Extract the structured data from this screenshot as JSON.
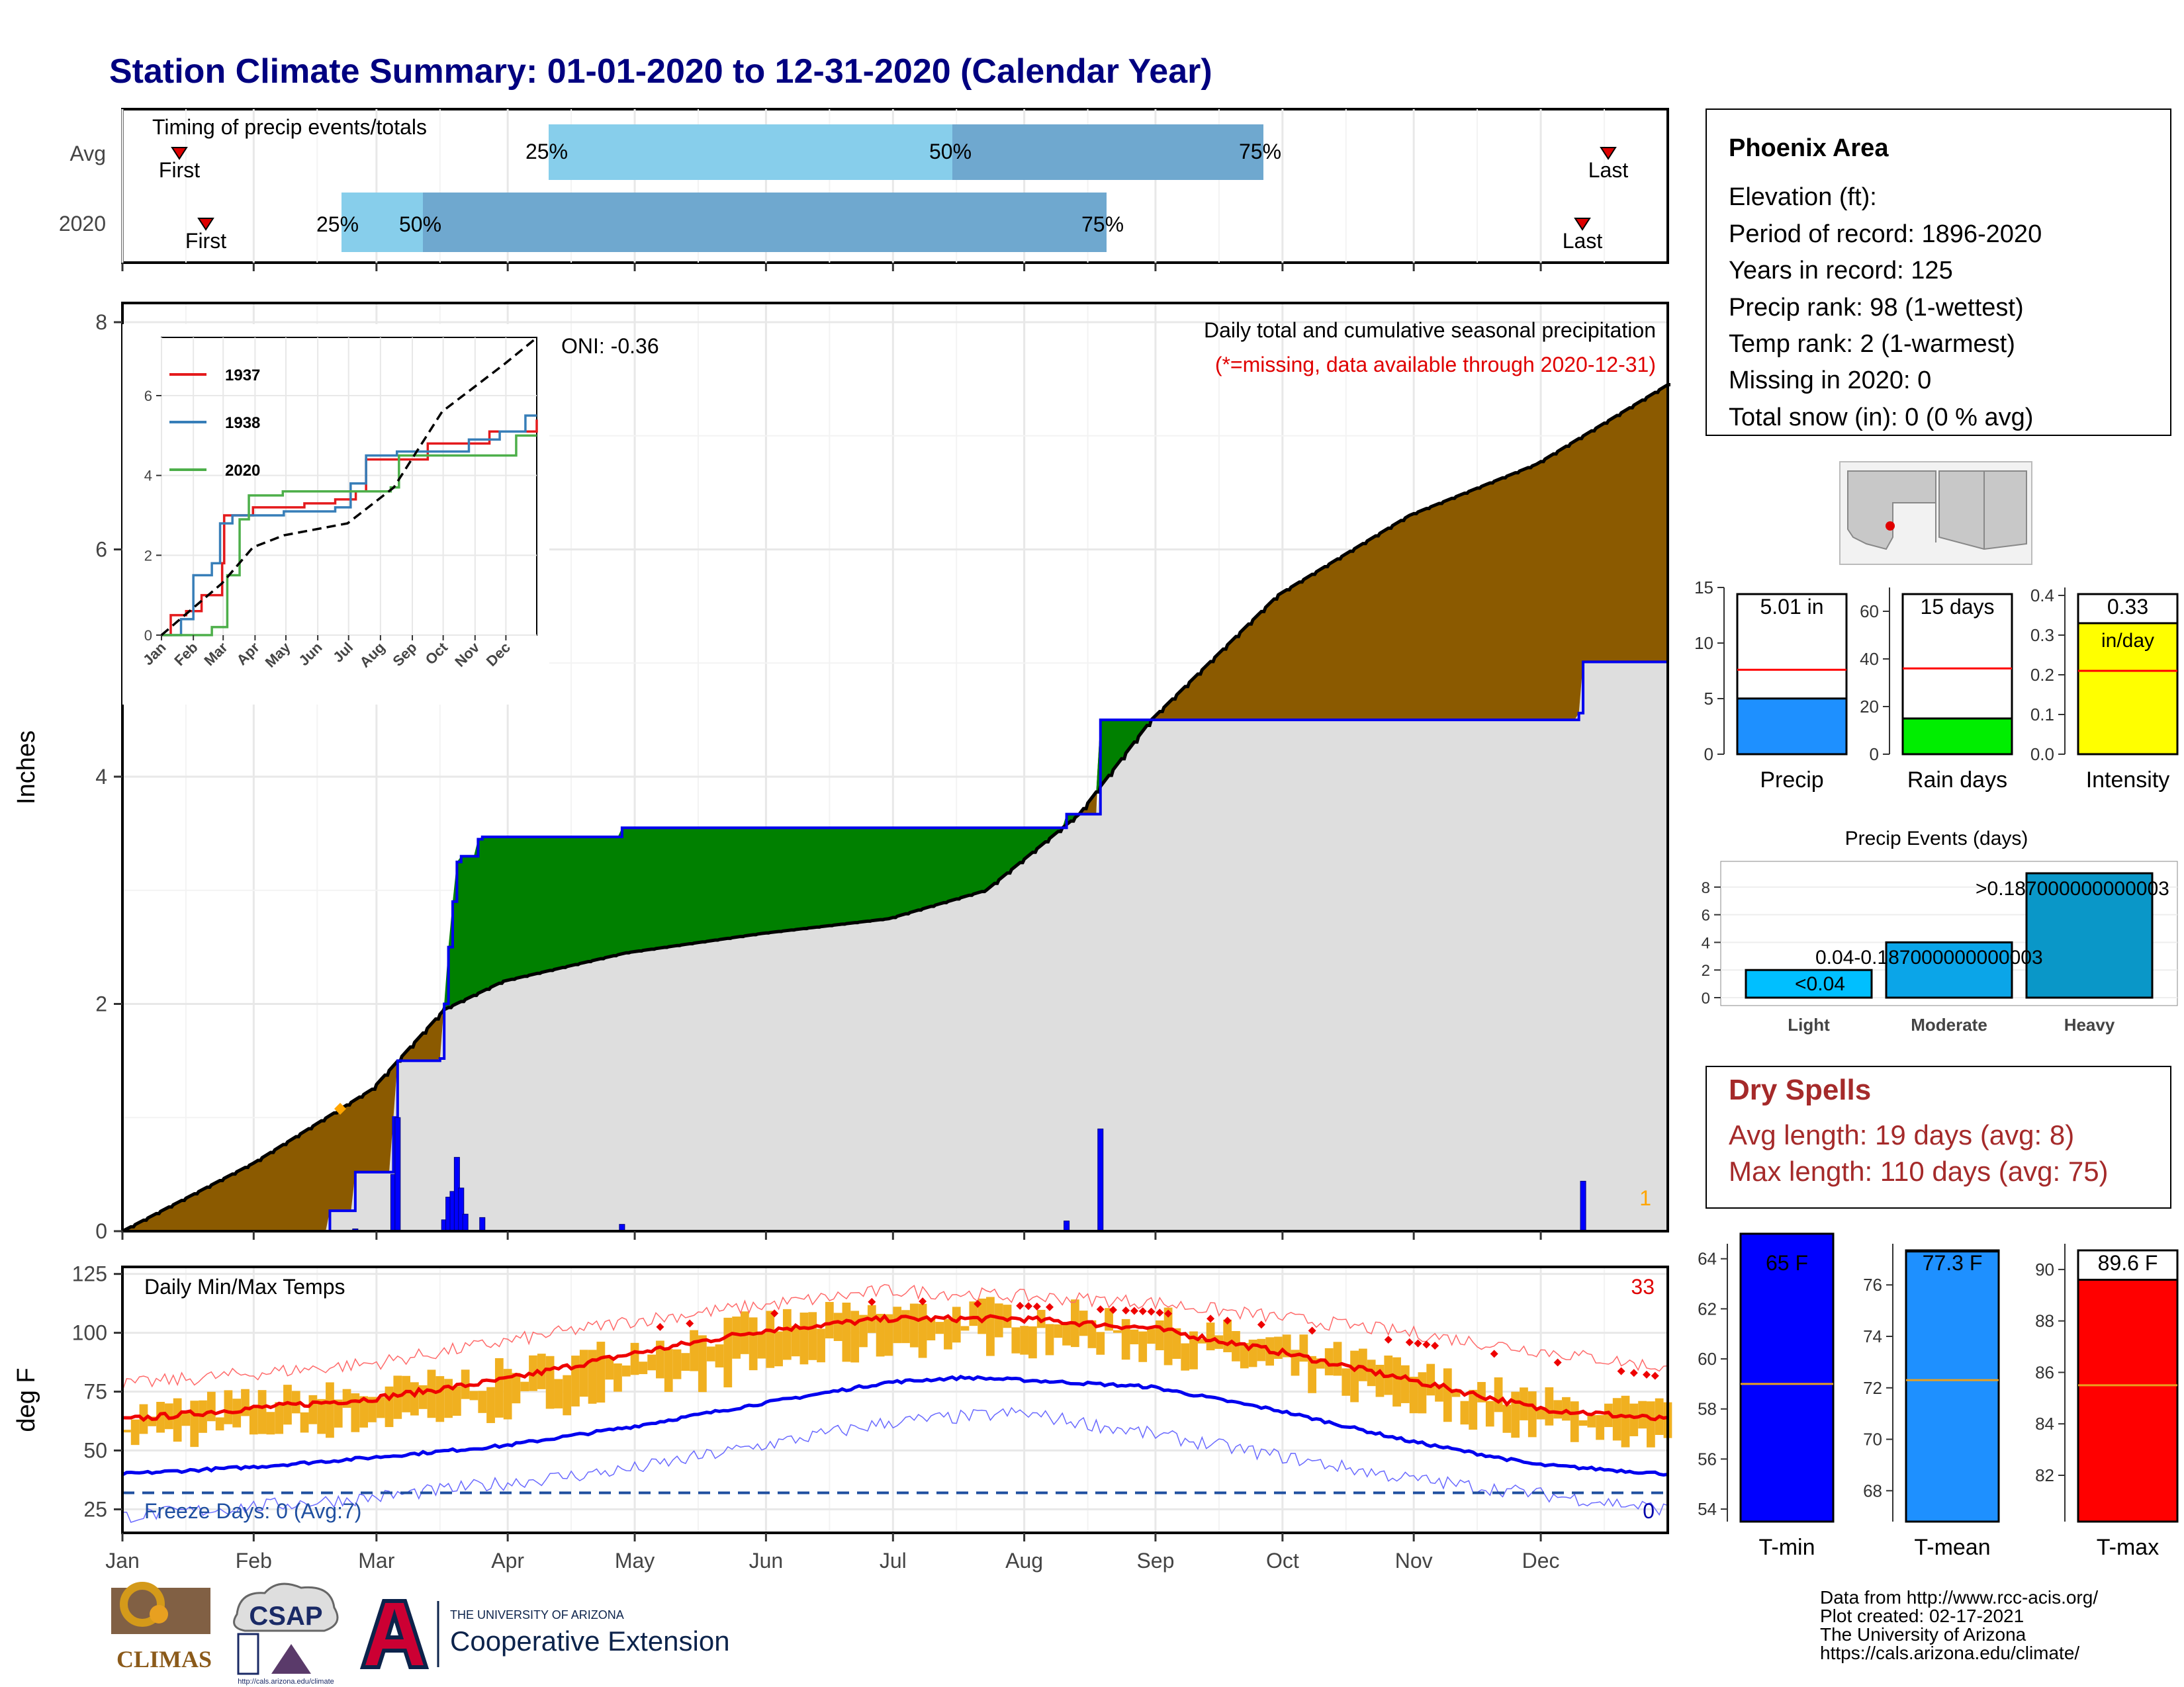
{
  "title": "Station Climate Summary: 01-01-2020 to 12-31-2020 (Calendar Year)",
  "months": [
    "Jan",
    "Feb",
    "Mar",
    "Apr",
    "May",
    "Jun",
    "Jul",
    "Aug",
    "Sep",
    "Oct",
    "Nov",
    "Dec"
  ],
  "timing": {
    "title": "Timing of precip events/totals",
    "rows": [
      "Avg",
      "2020"
    ],
    "first_label": "First",
    "last_label": "Last",
    "pct_labels": [
      "25%",
      "50%",
      "75%"
    ]
  },
  "precip_panel": {
    "y_label": "Inches",
    "oni": "ONI: -0.36",
    "legend_title": "Daily total and cumulative seasonal precipitation",
    "missing_note": "(*=missing, data available through 2020-12-31)",
    "missing_count": "1",
    "y_ticks": [
      "0",
      "2",
      "4",
      "6",
      "8"
    ]
  },
  "inset": {
    "legend": [
      "1937",
      "1938",
      "2020"
    ],
    "colors": [
      "#e41a1c",
      "#377eb8",
      "#4daf4a"
    ],
    "y_ticks": [
      "0",
      "2",
      "4",
      "6"
    ],
    "x_ticks": [
      "Jan",
      "Feb",
      "Mar",
      "Apr",
      "May",
      "Jun",
      "Jul",
      "Aug",
      "Sep",
      "Oct",
      "Nov",
      "Dec"
    ]
  },
  "temp_panel": {
    "y_label": "deg F",
    "title": "Daily Min/Max Temps",
    "record_count": "33",
    "freeze_label": "Freeze Days: 0 (Avg:7)",
    "freeze_count": "0",
    "y_ticks": [
      "25",
      "50",
      "75",
      "100",
      "125"
    ]
  },
  "info": {
    "station": "Phoenix Area",
    "lines": [
      "Elevation (ft):",
      "Period of record: 1896-2020",
      "Years in record: 125",
      "Precip rank: 98 (1-wettest)",
      "Temp rank: 2 (1-warmest)",
      "Missing in 2020: 0",
      "Total snow (in): 0 (0 % avg)"
    ]
  },
  "bars": {
    "precip": {
      "label": "Precip",
      "value_label": "5.01 in",
      "ticks": [
        "0",
        "5",
        "10",
        "15"
      ]
    },
    "raindays": {
      "label": "Rain days",
      "value_label": "15 days",
      "ticks": [
        "0",
        "20",
        "40",
        "60"
      ]
    },
    "intensity": {
      "label": "Intensity",
      "value_label": "0.33",
      "unit": "in/day",
      "ticks": [
        "0.0",
        "0.1",
        "0.2",
        "0.3",
        "0.4"
      ]
    }
  },
  "events": {
    "title": "Precip Events (days)",
    "labels": [
      "Light",
      "Moderate",
      "Heavy"
    ],
    "value_labels": [
      "<0.04",
      "0.04-0.187000000000003",
      ">0.187000000000003"
    ],
    "ticks": [
      "0",
      "2",
      "4",
      "6",
      "8"
    ]
  },
  "dry": {
    "title": "Dry Spells",
    "lines": [
      "Avg length: 19 days (avg: 8)",
      "Max length: 110 days (avg: 75)"
    ]
  },
  "temp_bars": {
    "tmin": {
      "label": "T-min",
      "value_label": "65 F",
      "ticks": [
        "54",
        "56",
        "58",
        "60",
        "62",
        "64"
      ]
    },
    "tmean": {
      "label": "T-mean",
      "value_label": "77.3 F",
      "ticks": [
        "68",
        "70",
        "72",
        "74",
        "76"
      ]
    },
    "tmax": {
      "label": "T-max",
      "value_label": "89.6 F",
      "ticks": [
        "82",
        "84",
        "86",
        "88",
        "90"
      ]
    }
  },
  "logos": {
    "climas": "CLIMAS",
    "csap": "CSAP",
    "csap_url": "http://cals.arizona.edu/climate",
    "ua_top": "THE UNIVERSITY OF ARIZONA",
    "ua_bottom": "Cooperative Extension"
  },
  "footer": [
    "Data from http://www.rcc-acis.org/",
    "Plot created: 02-17-2021",
    "The University of Arizona",
    "https://cals.arizona.edu/climate/"
  ],
  "chart_data": [
    {
      "type": "area",
      "title": "Daily total and cumulative seasonal precipitation",
      "ylabel": "Inches",
      "ylim": [
        0,
        8
      ],
      "cumulative_2020": [
        [
          1,
          0
        ],
        [
          50,
          0.18
        ],
        [
          56,
          0.52
        ],
        [
          65,
          1.0
        ],
        [
          66,
          1.5
        ],
        [
          76,
          1.52
        ],
        [
          77,
          2.0
        ],
        [
          78,
          2.5
        ],
        [
          79,
          2.9
        ],
        [
          80,
          3.25
        ],
        [
          81,
          3.3
        ],
        [
          85,
          3.45
        ],
        [
          86,
          3.47
        ],
        [
          119,
          3.55
        ],
        [
          224,
          3.67
        ],
        [
          232,
          4.5
        ],
        [
          345,
          4.56
        ],
        [
          346,
          5.01
        ],
        [
          366,
          5.01
        ]
      ],
      "cumulative_avg": [
        [
          1,
          0
        ],
        [
          32,
          0.6
        ],
        [
          60,
          1.25
        ],
        [
          77,
          1.95
        ],
        [
          91,
          2.2
        ],
        [
          120,
          2.45
        ],
        [
          152,
          2.62
        ],
        [
          182,
          2.75
        ],
        [
          205,
          3.0
        ],
        [
          227,
          3.67
        ],
        [
          244,
          4.5
        ],
        [
          274,
          5.6
        ],
        [
          305,
          6.3
        ],
        [
          335,
          6.75
        ],
        [
          366,
          7.45
        ]
      ],
      "daily_bars": [
        [
          56,
          0.02
        ],
        [
          65,
          0.5
        ],
        [
          66,
          1.0
        ],
        [
          77,
          0.1
        ],
        [
          78,
          0.3
        ],
        [
          79,
          0.35
        ],
        [
          80,
          0.65
        ],
        [
          81,
          0.38
        ],
        [
          82,
          0.15
        ],
        [
          86,
          0.12
        ],
        [
          119,
          0.06
        ],
        [
          224,
          0.09
        ],
        [
          232,
          0.9
        ],
        [
          346,
          0.44
        ]
      ],
      "first_event_marker": [
        65,
        1.05
      ]
    },
    {
      "type": "line",
      "title": "inset cumulative precipitation",
      "series": [
        {
          "name": "1937",
          "values": [
            [
              1,
              0
            ],
            [
              10,
              0.5
            ],
            [
              25,
              0.6
            ],
            [
              40,
              1.0
            ],
            [
              60,
              1.8
            ],
            [
              62,
              3.0
            ],
            [
              90,
              3.2
            ],
            [
              140,
              3.3
            ],
            [
              170,
              3.4
            ],
            [
              190,
              3.6
            ],
            [
              200,
              4.4
            ],
            [
              260,
              4.8
            ],
            [
              320,
              5.1
            ],
            [
              366,
              5.4
            ]
          ]
        },
        {
          "name": "1938",
          "values": [
            [
              1,
              0
            ],
            [
              20,
              0.4
            ],
            [
              32,
              1.5
            ],
            [
              50,
              1.8
            ],
            [
              58,
              2.8
            ],
            [
              70,
              3.0
            ],
            [
              120,
              3.1
            ],
            [
              170,
              3.2
            ],
            [
              185,
              3.8
            ],
            [
              200,
              4.5
            ],
            [
              230,
              4.6
            ],
            [
              300,
              4.9
            ],
            [
              330,
              5.1
            ],
            [
              355,
              5.5
            ],
            [
              366,
              5.5
            ]
          ]
        },
        {
          "name": "2020",
          "values": [
            [
              1,
              0
            ],
            [
              50,
              0.2
            ],
            [
              65,
              1.5
            ],
            [
              77,
              2.9
            ],
            [
              86,
              3.5
            ],
            [
              119,
              3.6
            ],
            [
              224,
              3.7
            ],
            [
              232,
              4.5
            ],
            [
              346,
              5.0
            ],
            [
              366,
              5.0
            ]
          ]
        }
      ],
      "average_dashed": [
        [
          1,
          0
        ],
        [
          60,
          1.3
        ],
        [
          90,
          2.2
        ],
        [
          120,
          2.5
        ],
        [
          182,
          2.8
        ],
        [
          227,
          3.7
        ],
        [
          274,
          5.6
        ],
        [
          335,
          6.8
        ],
        [
          366,
          7.45
        ]
      ]
    },
    {
      "type": "line",
      "title": "Daily Min/Max Temps",
      "ylabel": "deg F",
      "ylim": [
        15,
        128
      ],
      "avg_max": [
        [
          1,
          63
        ],
        [
          32,
          68
        ],
        [
          60,
          72
        ],
        [
          91,
          80
        ],
        [
          121,
          91
        ],
        [
          152,
          101
        ],
        [
          182,
          106
        ],
        [
          213,
          106
        ],
        [
          244,
          102
        ],
        [
          274,
          92
        ],
        [
          305,
          80
        ],
        [
          335,
          68
        ],
        [
          366,
          63
        ]
      ],
      "avg_min": [
        [
          1,
          40
        ],
        [
          32,
          43
        ],
        [
          60,
          47
        ],
        [
          91,
          52
        ],
        [
          121,
          60
        ],
        [
          152,
          70
        ],
        [
          182,
          79
        ],
        [
          200,
          81
        ],
        [
          213,
          80
        ],
        [
          244,
          77
        ],
        [
          274,
          67
        ],
        [
          305,
          54
        ],
        [
          335,
          44
        ],
        [
          366,
          40
        ]
      ],
      "record_max": [
        [
          1,
          78
        ],
        [
          60,
          87
        ],
        [
          121,
          105
        ],
        [
          182,
          118
        ],
        [
          244,
          113
        ],
        [
          305,
          100
        ],
        [
          366,
          85
        ]
      ],
      "record_min": [
        [
          1,
          22
        ],
        [
          60,
          30
        ],
        [
          121,
          42
        ],
        [
          182,
          62
        ],
        [
          213,
          66
        ],
        [
          244,
          57
        ],
        [
          305,
          38
        ],
        [
          366,
          25
        ]
      ],
      "freeze_line": 32
    },
    {
      "type": "bar",
      "categories": [
        "Precip"
      ],
      "values": [
        5.01
      ],
      "normal": 7.6,
      "ylim": [
        0,
        15
      ]
    },
    {
      "type": "bar",
      "categories": [
        "Rain days"
      ],
      "values": [
        15
      ],
      "normal": 36,
      "ylim": [
        0,
        70
      ]
    },
    {
      "type": "bar",
      "categories": [
        "Intensity"
      ],
      "values": [
        0.33
      ],
      "normal": 0.21,
      "ylim": [
        0,
        0.42
      ]
    },
    {
      "type": "bar",
      "title": "Precip Events (days)",
      "categories": [
        "Light",
        "Moderate",
        "Heavy"
      ],
      "values": [
        2,
        4,
        9
      ],
      "ylim": [
        0,
        9
      ]
    },
    {
      "type": "bar",
      "categories": [
        "T-min"
      ],
      "values": [
        65
      ],
      "normal": 59,
      "ylim": [
        53.5,
        64.6
      ]
    },
    {
      "type": "bar",
      "categories": [
        "T-mean"
      ],
      "values": [
        77.3
      ],
      "normal": 72.3,
      "ylim": [
        66.8,
        77.6
      ]
    },
    {
      "type": "bar",
      "categories": [
        "T-max"
      ],
      "values": [
        89.6
      ],
      "normal": 85.5,
      "ylim": [
        80.2,
        91
      ]
    }
  ]
}
